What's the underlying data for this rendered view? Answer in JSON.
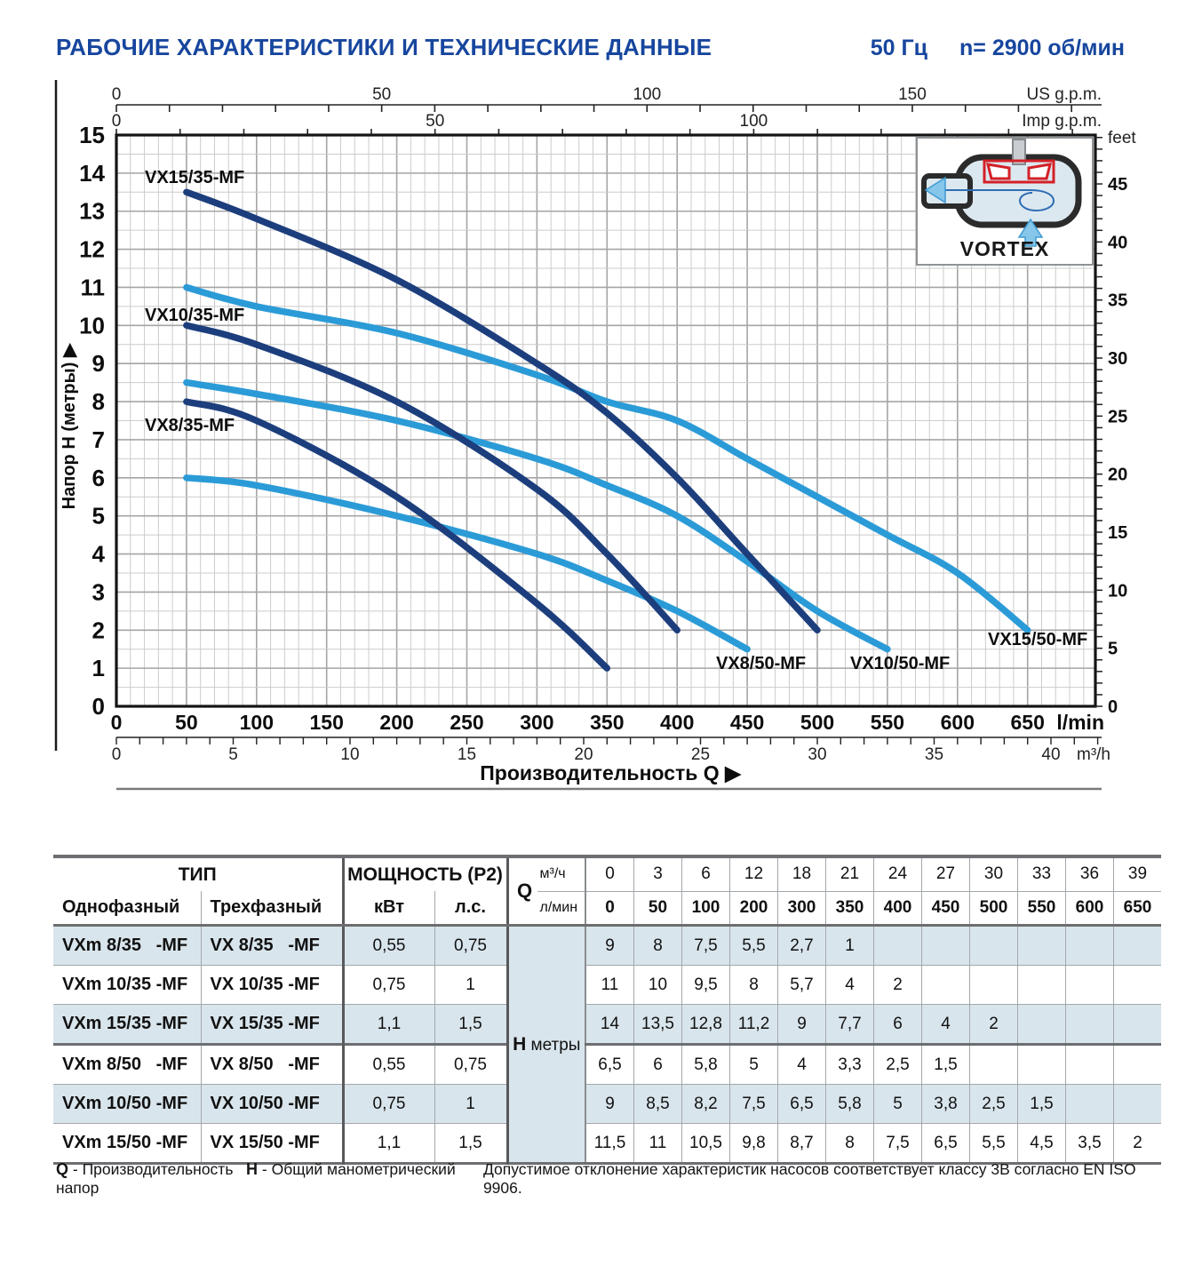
{
  "title": {
    "left": "РАБОЧИЕ ХАРАКТЕРИСТИКИ И ТЕХНИЧЕСКИЕ ДАННЫЕ",
    "freq": "50 Гц",
    "speed": "n= 2900 об/мин"
  },
  "colors": {
    "brand_blue": "#17469e",
    "curve_navy": "#1c3e7d",
    "curve_lightblue": "#2b9bd7",
    "row_shade": "#d9e5ec",
    "grid_minor": "#cccccc",
    "grid_major": "#a5a5a5",
    "frame": "#141414"
  },
  "chart_data": {
    "type": "line",
    "title": "Кривые напор-подача насосов VX",
    "xlabel": "Производительность Q",
    "ylabel": "Напор H (метры)",
    "x_axis_lmin": {
      "label": "l/min",
      "min": 0,
      "max": 650,
      "step": 50
    },
    "x_axis_m3h": {
      "label": "m³/h",
      "min": 0,
      "max": 40,
      "step": 5
    },
    "x_axis_us_gpm": {
      "label": "US g.p.m.",
      "labels": [
        0,
        50,
        100,
        150
      ]
    },
    "x_axis_imp_gpm": {
      "label": "Imp g.p.m.",
      "labels": [
        0,
        50,
        100
      ]
    },
    "y_axis_m": {
      "min": 0,
      "max": 15,
      "step": 1
    },
    "y_axis_feet": {
      "label": "feet",
      "min": 0,
      "max": 45,
      "label_step": 5
    },
    "grid": "on",
    "inset_label": "VORTEX",
    "series": [
      {
        "name": "VX8/50-MF",
        "color": "lightblue",
        "points": [
          [
            50,
            6
          ],
          [
            100,
            5.8
          ],
          [
            200,
            5
          ],
          [
            300,
            4
          ],
          [
            350,
            3.3
          ],
          [
            400,
            2.5
          ],
          [
            450,
            1.5
          ]
        ]
      },
      {
        "name": "VX10/50-MF",
        "color": "lightblue",
        "points": [
          [
            50,
            8.5
          ],
          [
            100,
            8.2
          ],
          [
            200,
            7.5
          ],
          [
            300,
            6.5
          ],
          [
            350,
            5.8
          ],
          [
            400,
            5
          ],
          [
            450,
            3.8
          ],
          [
            500,
            2.5
          ],
          [
            550,
            1.5
          ]
        ]
      },
      {
        "name": "VX15/50-MF",
        "color": "lightblue",
        "points": [
          [
            50,
            11
          ],
          [
            100,
            10.5
          ],
          [
            200,
            9.8
          ],
          [
            300,
            8.7
          ],
          [
            350,
            8
          ],
          [
            400,
            7.5
          ],
          [
            450,
            6.5
          ],
          [
            500,
            5.5
          ],
          [
            550,
            4.5
          ],
          [
            600,
            3.5
          ],
          [
            650,
            2
          ]
        ]
      },
      {
        "name": "VX8/35-MF",
        "color": "navy",
        "points": [
          [
            50,
            8
          ],
          [
            100,
            7.5
          ],
          [
            200,
            5.5
          ],
          [
            300,
            2.7
          ],
          [
            350,
            1
          ]
        ]
      },
      {
        "name": "VX10/35-MF",
        "color": "navy",
        "points": [
          [
            50,
            10
          ],
          [
            100,
            9.5
          ],
          [
            200,
            8
          ],
          [
            300,
            5.7
          ],
          [
            350,
            4
          ],
          [
            400,
            2
          ]
        ]
      },
      {
        "name": "VX15/35-MF",
        "color": "navy",
        "points": [
          [
            50,
            13.5
          ],
          [
            100,
            12.8
          ],
          [
            200,
            11.2
          ],
          [
            300,
            9
          ],
          [
            350,
            7.7
          ],
          [
            400,
            6
          ],
          [
            450,
            4
          ],
          [
            500,
            2
          ]
        ]
      }
    ]
  },
  "table": {
    "header": {
      "tip": "ТИП",
      "single": "Однофазный",
      "three": "Трехфазный",
      "power": "МОЩНОСТЬ (P2)",
      "kw": "кВт",
      "hp": "л.с.",
      "q": "Q",
      "m3h": "м³/ч",
      "lmin": "л/мин",
      "h_sym": "H",
      "h_unit": "метры",
      "m3h_values": [
        "0",
        "3",
        "6",
        "12",
        "18",
        "21",
        "24",
        "27",
        "30",
        "33",
        "36",
        "39"
      ],
      "lmin_values": [
        "0",
        "50",
        "100",
        "200",
        "300",
        "350",
        "400",
        "450",
        "500",
        "550",
        "600",
        "650"
      ]
    },
    "rows": [
      {
        "single": "VXm 8/35   -MF",
        "three": "VX 8/35   -MF",
        "kw": "0,55",
        "hp": "0,75",
        "shaded": true,
        "h": [
          "9",
          "8",
          "7,5",
          "5,5",
          "2,7",
          "1",
          "",
          "",
          "",
          "",
          "",
          ""
        ]
      },
      {
        "single": "VXm 10/35 -MF",
        "three": "VX 10/35 -MF",
        "kw": "0,75",
        "hp": "1",
        "shaded": false,
        "h": [
          "11",
          "10",
          "9,5",
          "8",
          "5,7",
          "4",
          "2",
          "",
          "",
          "",
          "",
          ""
        ]
      },
      {
        "single": "VXm 15/35 -MF",
        "three": "VX 15/35 -MF",
        "kw": "1,1",
        "hp": "1,5",
        "shaded": true,
        "h": [
          "14",
          "13,5",
          "12,8",
          "11,2",
          "9",
          "7,7",
          "6",
          "4",
          "2",
          "",
          "",
          ""
        ]
      },
      {
        "single": "VXm 8/50   -MF",
        "three": "VX 8/50   -MF",
        "kw": "0,55",
        "hp": "0,75",
        "shaded": false,
        "h": [
          "6,5",
          "6",
          "5,8",
          "5",
          "4",
          "3,3",
          "2,5",
          "1,5",
          "",
          "",
          "",
          ""
        ]
      },
      {
        "single": "VXm 10/50 -MF",
        "three": "VX 10/50 -MF",
        "kw": "0,75",
        "hp": "1",
        "shaded": true,
        "h": [
          "9",
          "8,5",
          "8,2",
          "7,5",
          "6,5",
          "5,8",
          "5",
          "3,8",
          "2,5",
          "1,5",
          "",
          ""
        ]
      },
      {
        "single": "VXm 15/50 -MF",
        "three": "VX 15/50 -MF",
        "kw": "1,1",
        "hp": "1,5",
        "shaded": false,
        "h": [
          "11,5",
          "11",
          "10,5",
          "9,8",
          "8,7",
          "8",
          "7,5",
          "6,5",
          "5,5",
          "4,5",
          "3,5",
          "2"
        ]
      }
    ]
  },
  "footer": {
    "q": "Q",
    "q_label": "- Производительность",
    "h": "H",
    "h_label": "- Общий манометрический напор",
    "note": "Допустимое отклонение характеристик насосов соответствует классу 3В согласно EN ISO 9906."
  }
}
